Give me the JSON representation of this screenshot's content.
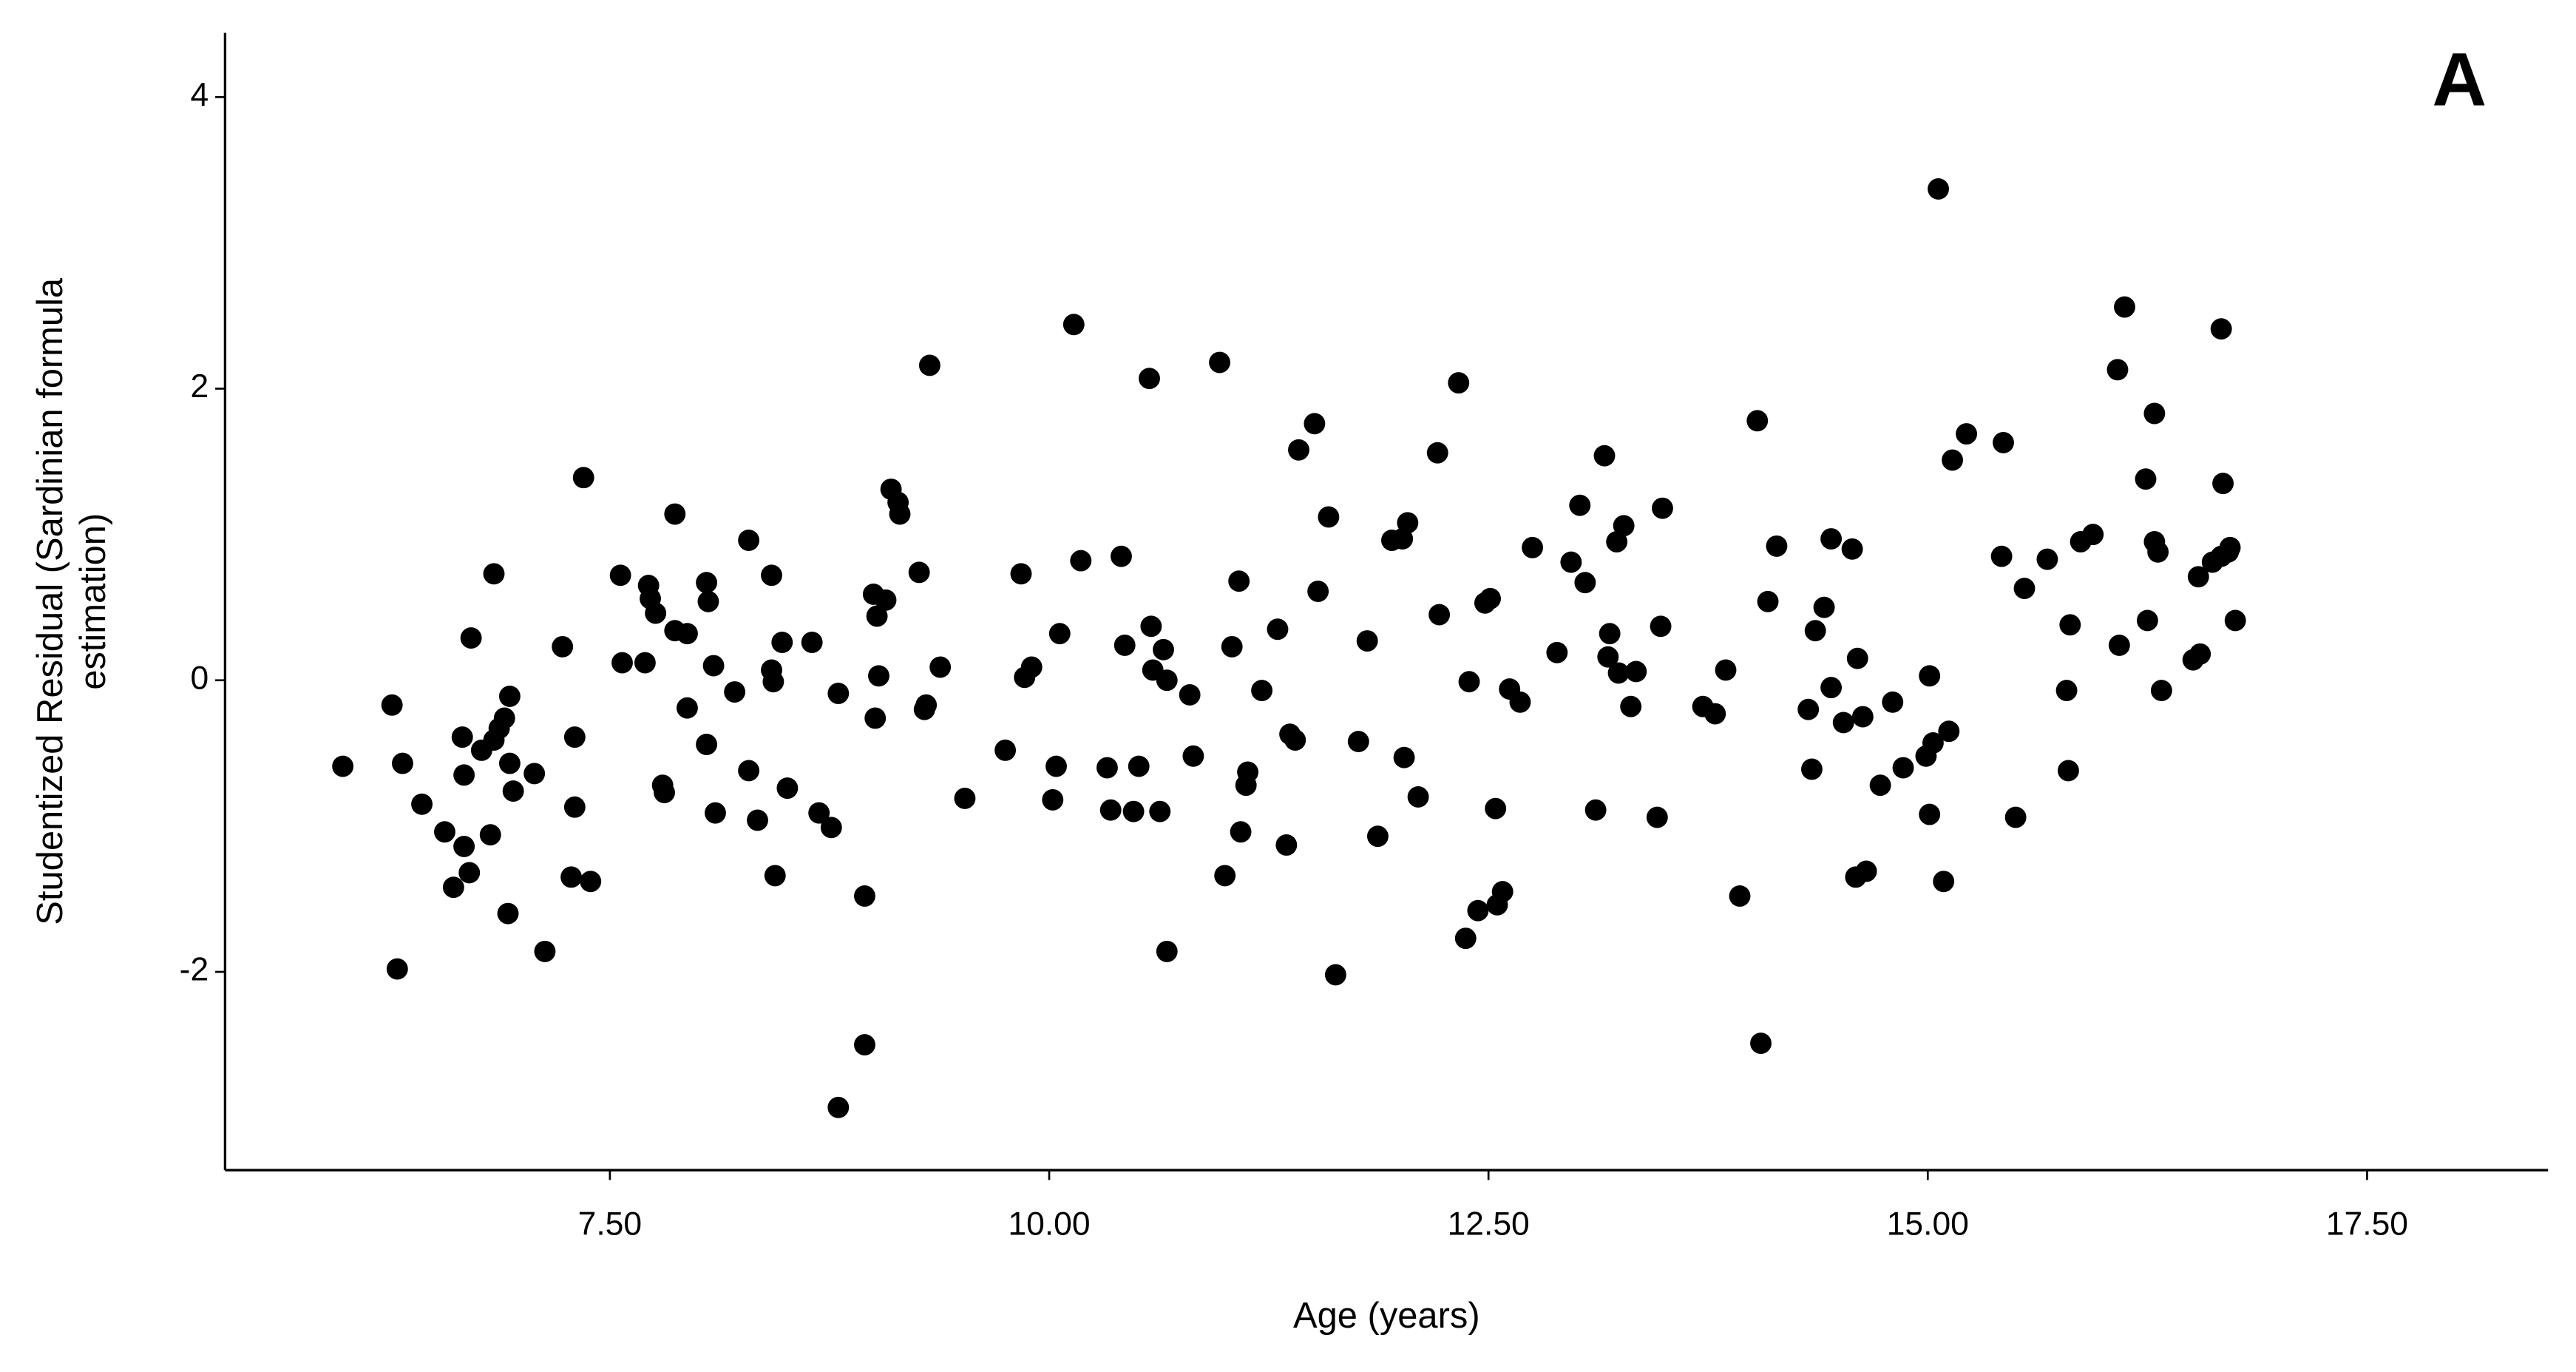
{
  "chart_data": {
    "type": "scatter",
    "panel_label": "A",
    "x_label": "Age (years)",
    "y_label": [
      "Studentized Residual (Sardinian formula",
      "estimation)"
    ],
    "color": "#000000",
    "xlim": [
      5.31,
      18.53
    ],
    "ylim": [
      -3.36,
      4.44
    ],
    "xticks": [
      {
        "value": 7.5,
        "label": "7.50"
      },
      {
        "value": 10,
        "label": "10.00"
      },
      {
        "value": 12.5,
        "label": "12.50"
      },
      {
        "value": 15,
        "label": "15.00"
      },
      {
        "value": 17.5,
        "label": "17.50"
      }
    ],
    "yticks": [
      -2,
      0,
      2,
      4
    ],
    "grid": false,
    "x": [
      5.98,
      6.26,
      6.32,
      6.29,
      6.43,
      6.56,
      6.61,
      6.67,
      6.66,
      6.67,
      6.7,
      6.71,
      6.77,
      6.82,
      6.84,
      6.84,
      6.87,
      6.9,
      6.92,
      6.93,
      6.93,
      6.95,
      7.07,
      7.13,
      7.23,
      7.28,
      7.3,
      7.3,
      7.35,
      7.39,
      7.56,
      7.57,
      7.7,
      7.72,
      7.73,
      7.76,
      7.8,
      7.81,
      7.87,
      7.87,
      7.94,
      7.94,
      8.05,
      8.06,
      8.05,
      8.09,
      8.1,
      8.21,
      8.29,
      8.29,
      8.34,
      8.42,
      8.42,
      8.43,
      8.44,
      8.48,
      8.51,
      8.65,
      8.69,
      8.76,
      8.8,
      8.8,
      8.95,
      8.95,
      9.0,
      9.01,
      9.02,
      9.03,
      9.07,
      9.1,
      9.14,
      9.15,
      9.26,
      9.29,
      9.3,
      9.32,
      9.38,
      9.52,
      9.75,
      9.84,
      9.86,
      9.9,
      10.02,
      10.04,
      10.06,
      10.14,
      10.18,
      10.33,
      10.35,
      10.41,
      10.43,
      10.48,
      10.51,
      10.57,
      10.58,
      10.59,
      10.63,
      10.65,
      10.67,
      10.67,
      10.8,
      10.82,
      10.97,
      11.0,
      11.04,
      11.08,
      11.09,
      11.12,
      11.13,
      11.21,
      11.3,
      11.35,
      11.37,
      11.4,
      11.42,
      11.51,
      11.53,
      11.59,
      11.63,
      11.76,
      11.81,
      11.87,
      11.95,
      12.01,
      12.02,
      12.04,
      12.1,
      12.21,
      12.22,
      12.33,
      12.37,
      12.39,
      12.44,
      12.48,
      12.51,
      12.54,
      12.55,
      12.58,
      12.62,
      12.68,
      12.75,
      12.89,
      12.97,
      13.02,
      13.05,
      13.11,
      13.16,
      13.19,
      13.18,
      13.23,
      13.24,
      13.27,
      13.31,
      13.34,
      13.48,
      13.49,
      13.46,
      13.72,
      13.79,
      13.85,
      13.93,
      14.03,
      14.05,
      14.09,
      14.14,
      14.32,
      14.34,
      14.36,
      14.41,
      14.45,
      14.45,
      14.52,
      14.57,
      14.6,
      14.59,
      14.63,
      14.65,
      14.73,
      14.8,
      14.86,
      14.99,
      15.01,
      15.01,
      15.03,
      15.06,
      15.09,
      15.12,
      15.14,
      15.22,
      15.42,
      15.43,
      15.5,
      15.55,
      15.68,
      15.79,
      15.8,
      15.81,
      15.87,
      15.94,
      16.08,
      16.09,
      16.12,
      16.24,
      16.25,
      16.29,
      16.29,
      16.31,
      16.33,
      16.51,
      16.55,
      16.54,
      16.62,
      16.67,
      16.68,
      16.67,
      16.71,
      16.72,
      16.75
    ],
    "values": [
      -0.59,
      -0.17,
      -0.57,
      -1.98,
      -0.85,
      -1.04,
      -1.42,
      -1.14,
      -0.39,
      -0.65,
      -1.32,
      0.29,
      -0.48,
      -1.06,
      0.73,
      -0.41,
      -0.33,
      -0.26,
      -1.6,
      -0.11,
      -0.57,
      -0.76,
      -0.64,
      -1.86,
      0.23,
      -1.35,
      -0.39,
      -0.87,
      1.39,
      -1.38,
      0.72,
      0.12,
      0.12,
      0.65,
      0.56,
      0.46,
      -0.72,
      -0.77,
      1.14,
      0.34,
      0.32,
      -0.19,
      0.67,
      0.54,
      -0.44,
      0.1,
      -0.91,
      -0.08,
      0.96,
      -0.62,
      -0.96,
      0.07,
      0.72,
      -0.01,
      -1.34,
      0.26,
      -0.74,
      0.26,
      -0.91,
      -1.01,
      -0.09,
      -2.93,
      -1.48,
      -2.5,
      0.59,
      -0.26,
      0.44,
      0.03,
      0.55,
      1.31,
      1.22,
      1.14,
      0.74,
      -0.2,
      -0.17,
      2.16,
      0.09,
      -0.81,
      -0.48,
      0.73,
      0.02,
      0.09,
      -0.82,
      -0.59,
      0.32,
      2.44,
      0.82,
      -0.6,
      -0.89,
      0.85,
      0.24,
      -0.9,
      -0.59,
      2.07,
      0.37,
      0.07,
      -0.9,
      0.21,
      0.0,
      -1.86,
      -0.1,
      -0.52,
      2.18,
      -1.34,
      0.23,
      0.68,
      -1.04,
      -0.72,
      -0.63,
      -0.07,
      0.35,
      -1.13,
      -0.37,
      -0.41,
      1.58,
      1.76,
      0.61,
      1.12,
      -2.02,
      -0.42,
      0.27,
      -1.07,
      0.96,
      0.97,
      -0.53,
      1.08,
      -0.8,
      1.56,
      0.45,
      2.04,
      -1.77,
      -0.01,
      -1.58,
      0.53,
      0.56,
      -0.88,
      -1.54,
      -1.45,
      -0.06,
      -0.15,
      0.91,
      0.19,
      0.81,
      1.2,
      0.67,
      -0.89,
      1.54,
      0.32,
      0.16,
      0.95,
      0.05,
      1.06,
      -0.18,
      0.06,
      0.37,
      1.18,
      -0.94,
      -0.18,
      -0.23,
      0.07,
      -1.48,
      1.78,
      -2.49,
      0.54,
      0.92,
      -0.2,
      -0.61,
      0.34,
      0.5,
      0.97,
      -0.05,
      -0.29,
      0.9,
      0.15,
      -1.35,
      -0.25,
      -1.31,
      -0.72,
      -0.15,
      -0.6,
      -0.52,
      -0.92,
      0.03,
      -0.43,
      3.37,
      -1.38,
      -0.35,
      1.51,
      1.69,
      0.85,
      1.63,
      -0.94,
      0.63,
      0.83,
      -0.07,
      -0.62,
      0.38,
      0.95,
      1.0,
      2.13,
      0.24,
      2.56,
      1.38,
      0.41,
      1.83,
      0.95,
      0.88,
      -0.07,
      0.14,
      0.18,
      0.71,
      0.81,
      2.41,
      1.35,
      0.85,
      0.88,
      0.91,
      0.41
    ]
  }
}
